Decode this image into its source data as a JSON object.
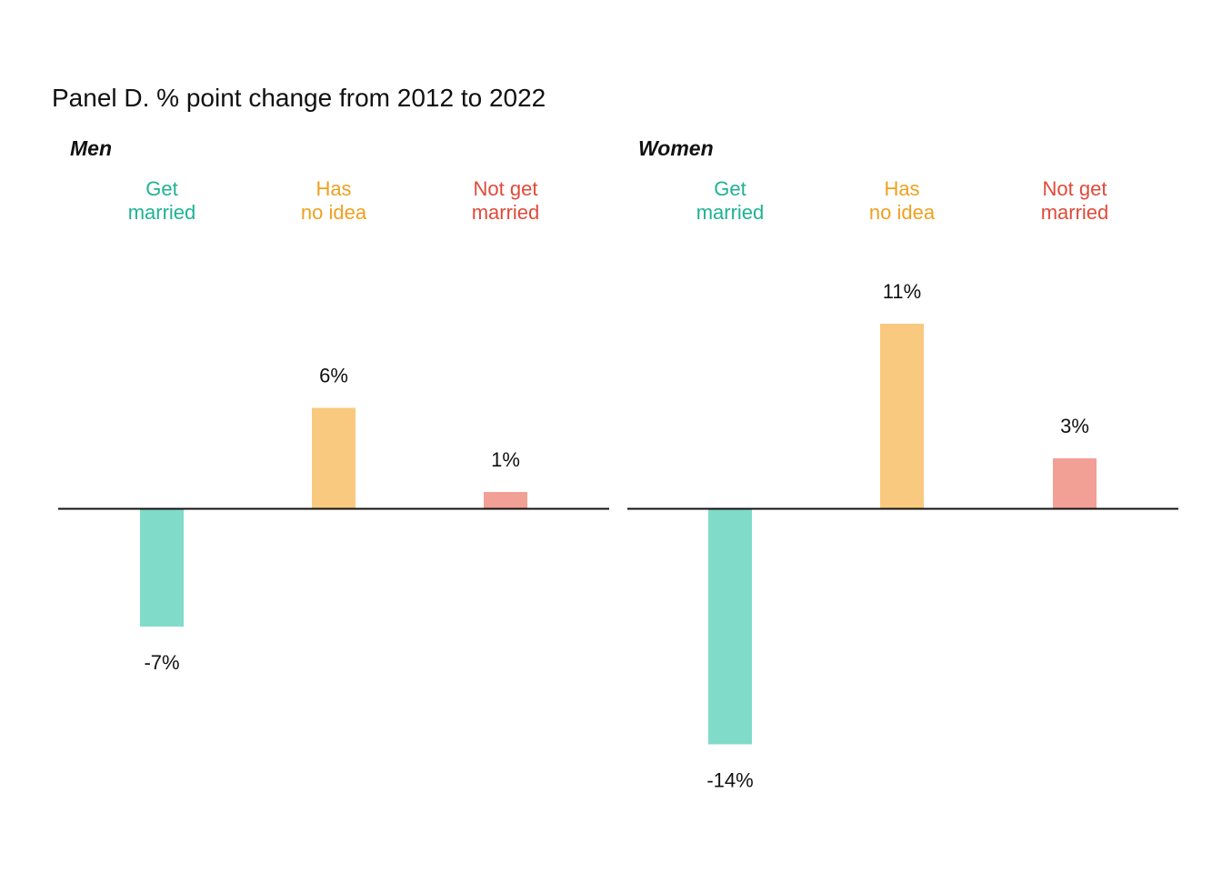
{
  "chart_data": {
    "type": "bar",
    "title": "Panel D. % point change from 2012 to 2022",
    "categories": [
      {
        "lines": [
          "Get",
          "married"
        ],
        "text_color": "#1fb294",
        "bar_color": "#80dbc8"
      },
      {
        "lines": [
          "Has",
          "no idea"
        ],
        "text_color": "#f0a01f",
        "bar_color": "#f8c97e"
      },
      {
        "lines": [
          "Not get",
          "married"
        ],
        "text_color": "#e04a3a",
        "bar_color": "#f29f96"
      }
    ],
    "panels": [
      {
        "name": "Men",
        "values": [
          -7,
          6,
          1
        ],
        "value_labels": [
          "-7%",
          "6%",
          "1%"
        ]
      },
      {
        "name": "Women",
        "values": [
          -14,
          11,
          3
        ],
        "value_labels": [
          "-14%",
          "11%",
          "3%"
        ]
      }
    ],
    "ylim": [
      -15,
      12
    ],
    "baseline": 0,
    "grid": false,
    "legend": "none"
  }
}
